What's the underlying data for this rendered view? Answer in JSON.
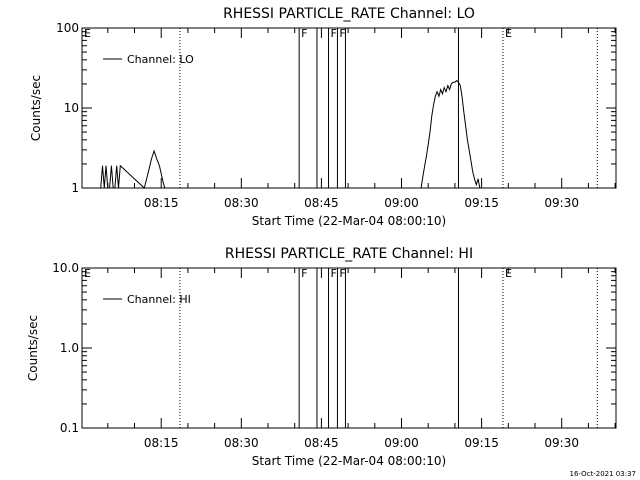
{
  "timestamp": "16-Oct-2021 03:37",
  "chart_data": [
    {
      "type": "line",
      "title": "RHESSI PARTICLE_RATE Channel: LO",
      "xlabel": "Start Time (22-Mar-04 08:00:10)",
      "ylabel": "Counts/sec",
      "yscale": "log",
      "ylim": [
        1,
        100
      ],
      "xlim": [
        "08:00:10",
        "09:40:10"
      ],
      "y_tick_labels": [
        "1",
        "10",
        "100"
      ],
      "x_tick_labels": [
        "08:15",
        "08:30",
        "08:45",
        "09:00",
        "09:15",
        "09:30"
      ],
      "legend": {
        "placement": "top-left",
        "label": "Channel: LO"
      },
      "markers": [
        {
          "label": "E",
          "time": "08:00:10",
          "style": "none"
        },
        {
          "label": "",
          "time": "08:18:30",
          "style": "dotted"
        },
        {
          "label": "F",
          "time": "08:40:50",
          "style": "solid"
        },
        {
          "label": "",
          "time": "08:44:10",
          "style": "solid"
        },
        {
          "label": "F",
          "time": "08:46:20",
          "style": "solid"
        },
        {
          "label": "F",
          "time": "08:48:00",
          "style": "solid"
        },
        {
          "label": "",
          "time": "08:49:30",
          "style": "solid"
        },
        {
          "label": "",
          "time": "09:10:40",
          "style": "solid"
        },
        {
          "label": "E",
          "time": "09:19:00",
          "style": "dotted"
        },
        {
          "label": "",
          "time": "09:36:40",
          "style": "dotted"
        }
      ],
      "series": [
        {
          "x": [
            "08:03:40",
            "08:04:00",
            "08:04:20",
            "08:04:40",
            "08:05:00",
            "08:05:20",
            "08:05:40",
            "08:06:00",
            "08:06:20",
            "08:06:40",
            "08:07:00",
            "08:07:20",
            "08:11:50",
            "08:12:30",
            "08:13:10",
            "08:13:40",
            "08:14:10",
            "08:14:40",
            "08:15:20",
            "08:15:40",
            "09:03:40",
            "09:04:00",
            "09:04:20",
            "09:04:40",
            "09:05:00",
            "09:05:20",
            "09:05:40",
            "09:06:00",
            "09:06:20",
            "09:06:40",
            "09:07:00",
            "09:07:20",
            "09:07:40",
            "09:08:00",
            "09:08:20",
            "09:08:40",
            "09:09:00",
            "09:09:20",
            "09:09:40",
            "09:10:00",
            "09:10:20",
            "09:10:40",
            "09:11:00",
            "09:11:20",
            "09:11:40",
            "09:12:00",
            "09:12:20",
            "09:12:40",
            "09:13:00",
            "09:13:20",
            "09:13:40",
            "09:14:00",
            "09:14:20",
            "09:14:40",
            "09:15:00"
          ],
          "values": [
            1.0,
            1.9,
            1.0,
            1.9,
            1.0,
            1.0,
            1.9,
            1.0,
            1.0,
            1.9,
            1.0,
            1.9,
            1.0,
            1.5,
            2.3,
            2.9,
            2.3,
            1.9,
            1.2,
            1.0,
            1.0,
            1.4,
            1.9,
            2.5,
            3.5,
            5.0,
            8.0,
            11.0,
            14.0,
            16.0,
            14.0,
            17.0,
            15.0,
            18.0,
            16.0,
            19.0,
            17.0,
            20.0,
            21.0,
            21.0,
            22.0,
            21.0,
            19.0,
            14.0,
            9.0,
            6.0,
            4.0,
            3.0,
            2.2,
            1.6,
            1.3,
            1.1,
            1.3,
            1.0,
            1.0
          ]
        }
      ]
    },
    {
      "type": "line",
      "title": "RHESSI PARTICLE_RATE Channel: HI",
      "xlabel": "Start Time (22-Mar-04 08:00:10)",
      "ylabel": "Counts/sec",
      "yscale": "log",
      "ylim": [
        0.1,
        10.0
      ],
      "xlim": [
        "08:00:10",
        "09:40:10"
      ],
      "y_tick_labels": [
        "0.1",
        "1.0",
        "10.0"
      ],
      "x_tick_labels": [
        "08:15",
        "08:30",
        "08:45",
        "09:00",
        "09:15",
        "09:30"
      ],
      "legend": {
        "placement": "top-left",
        "label": "Channel: HI"
      },
      "markers": [
        {
          "label": "E",
          "time": "08:00:10",
          "style": "none"
        },
        {
          "label": "",
          "time": "08:18:30",
          "style": "dotted"
        },
        {
          "label": "F",
          "time": "08:40:50",
          "style": "solid"
        },
        {
          "label": "",
          "time": "08:44:10",
          "style": "solid"
        },
        {
          "label": "F",
          "time": "08:46:20",
          "style": "solid"
        },
        {
          "label": "F",
          "time": "08:48:00",
          "style": "solid"
        },
        {
          "label": "",
          "time": "08:49:30",
          "style": "solid"
        },
        {
          "label": "",
          "time": "09:10:40",
          "style": "solid"
        },
        {
          "label": "E",
          "time": "09:19:00",
          "style": "dotted"
        },
        {
          "label": "",
          "time": "09:36:40",
          "style": "dotted"
        }
      ],
      "series": [
        {
          "x": [],
          "values": []
        }
      ]
    }
  ]
}
